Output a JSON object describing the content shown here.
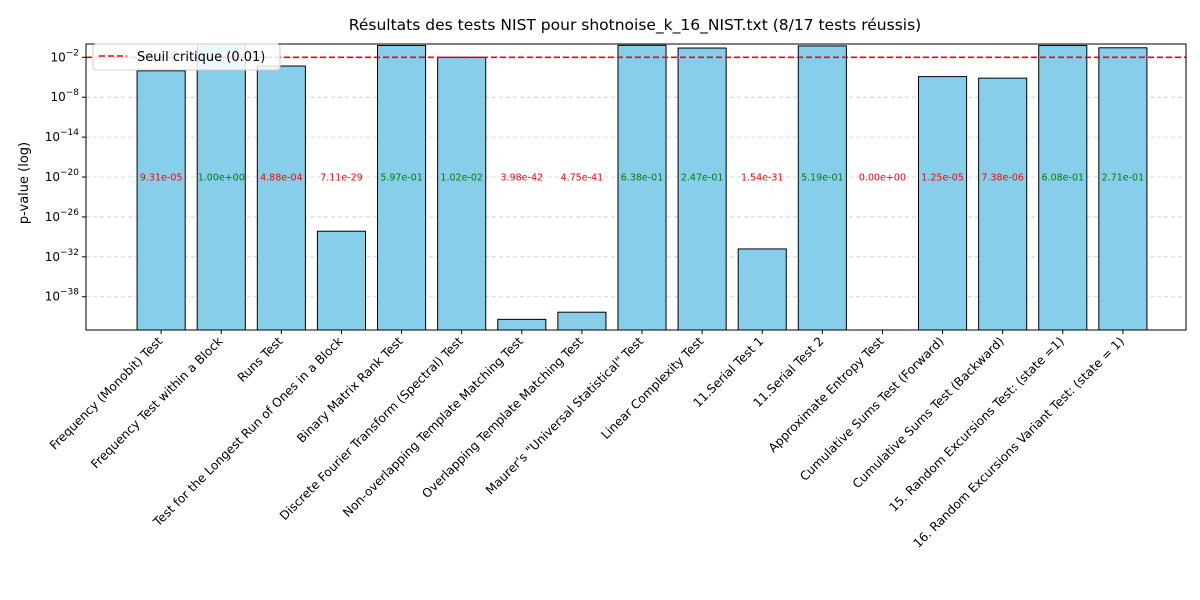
{
  "chart_data": {
    "type": "bar",
    "title": "Résultats des tests NIST pour shotnoise_k_16_NIST.txt (8/17 tests réussis)",
    "xlabel": "",
    "ylabel": "p-value (log)",
    "yscale": "log",
    "ylim": [
      1e-43,
      1
    ],
    "yticks": [
      {
        "exp": "-2",
        "value": 0.01
      },
      {
        "exp": "-8",
        "value": 1e-08
      },
      {
        "exp": "-14",
        "value": 1e-14
      },
      {
        "exp": "-20",
        "value": 1e-20
      },
      {
        "exp": "-26",
        "value": 1e-26
      },
      {
        "exp": "-32",
        "value": 1e-32
      },
      {
        "exp": "-38",
        "value": 1e-38
      }
    ],
    "grid": "horizontal-dashed",
    "categories": [
      "Frequency (Monobit) Test",
      "Frequency Test within a Block",
      "Runs Test",
      "Test for the Longest Run of Ones in a Block",
      "Binary Matrix Rank Test",
      "Discrete Fourier Transform (Spectral) Test",
      "Non-overlapping Template Matching Test",
      "Overlapping Template Matching Test",
      "Maurer's \"Universal Statistical\" Test",
      "Linear Complexity Test",
      "11.Serial Test 1",
      "11.Serial Test 2",
      "Approximate Entropy Test",
      "Cumulative Sums Test (Forward)",
      "Cumulative Sums Test (Backward)",
      "15. Random Excursions Test: (state =1)",
      "16. Random Excursions Variant Test: (state = 1)"
    ],
    "values": [
      9.31e-05,
      1.0,
      0.000488,
      7.11e-29,
      0.597,
      0.0102,
      3.98e-42,
      4.75e-41,
      0.638,
      0.247,
      1.54e-31,
      0.519,
      0.0,
      1.25e-05,
      7.38e-06,
      0.608,
      0.271
    ],
    "value_labels": [
      "9.31e-05",
      "1.00e+00",
      "4.88e-04",
      "7.11e-29",
      "5.97e-01",
      "1.02e-02",
      "3.98e-42",
      "4.75e-41",
      "6.38e-01",
      "2.47e-01",
      "1.54e-31",
      "5.19e-01",
      "0.00e+00",
      "1.25e-05",
      "7.38e-06",
      "6.08e-01",
      "2.71e-01"
    ],
    "threshold": {
      "value": 0.01,
      "label": "Seuil critique (0.01)",
      "color": "#ff0000",
      "style": "dashed"
    },
    "legend": {
      "placement": "top-left"
    },
    "colors": {
      "bar_fill": "#87ceeb",
      "bar_edge": "#000000",
      "pass": "#008000",
      "fail": "#ff0000",
      "grid": "#cccccc"
    }
  }
}
